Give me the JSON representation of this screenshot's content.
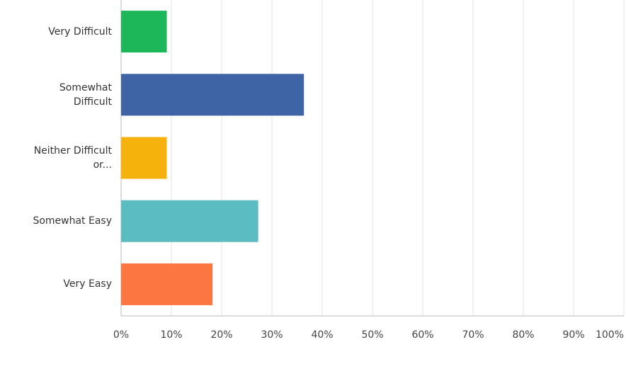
{
  "chart_data": {
    "type": "bar",
    "orientation": "horizontal",
    "categories": [
      "Very Difficult",
      "Somewhat Difficult",
      "Neither Difficult or...",
      "Somewhat Easy",
      "Very Easy"
    ],
    "values": [
      9.09,
      36.36,
      9.09,
      27.27,
      18.18
    ],
    "colors": [
      "#1db75a",
      "#3e64a6",
      "#f5b10c",
      "#5bbcc1",
      "#fb7640"
    ],
    "xlim": [
      0,
      100
    ],
    "xticks": [
      {
        "value": 0,
        "label": "0%"
      },
      {
        "value": 10,
        "label": "10%"
      },
      {
        "value": 20,
        "label": "20%"
      },
      {
        "value": 30,
        "label": "30%"
      },
      {
        "value": 40,
        "label": "40%"
      },
      {
        "value": 50,
        "label": "50%"
      },
      {
        "value": 60,
        "label": "60%"
      },
      {
        "value": 70,
        "label": "70%"
      },
      {
        "value": 80,
        "label": "80%"
      },
      {
        "value": 90,
        "label": "90%"
      },
      {
        "value": 100,
        "label": "100%"
      }
    ],
    "grid": true
  }
}
